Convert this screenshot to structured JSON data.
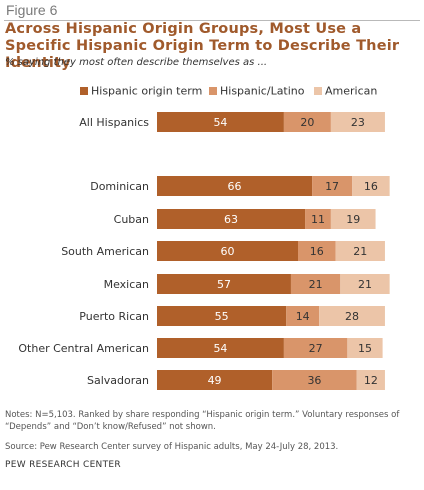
{
  "figure_label": "Figure 6",
  "title": "Across Hispanic Origin Groups, Most Use a Specific Hispanic Origin Term to Describe Their Identity",
  "subtitle": "% saying they most often describe themselves as ...",
  "notes": "Notes: N=5,103. Ranked by share responding “Hispanic origin term.” Voluntary responses of “Depends” and “Don’t know/Refused” not shown.",
  "source": "Source: Pew Research Center survey of Hispanic adults, May 24-July 28, 2013.",
  "org": "PEW RESEARCH CENTER",
  "chart_data": {
    "type": "bar",
    "orientation": "horizontal",
    "stacked": true,
    "categories": [
      "All Hispanics",
      "Dominican",
      "Cuban",
      "South American",
      "Mexican",
      "Puerto Rican",
      "Other Central American",
      "Salvadoran"
    ],
    "series": [
      {
        "name": "Hispanic origin term",
        "color": "#b0602a",
        "values": [
          54,
          66,
          63,
          60,
          57,
          55,
          54,
          49
        ]
      },
      {
        "name": "Hispanic/Latino",
        "color": "#d9956a",
        "values": [
          20,
          17,
          11,
          16,
          21,
          14,
          27,
          36
        ]
      },
      {
        "name": "American",
        "color": "#ecc5a8",
        "values": [
          23,
          16,
          19,
          21,
          21,
          28,
          15,
          12
        ]
      }
    ],
    "label_colors": [
      "#ffffff",
      "#333333",
      "#333333"
    ],
    "legend_position": "top",
    "grid": false
  }
}
